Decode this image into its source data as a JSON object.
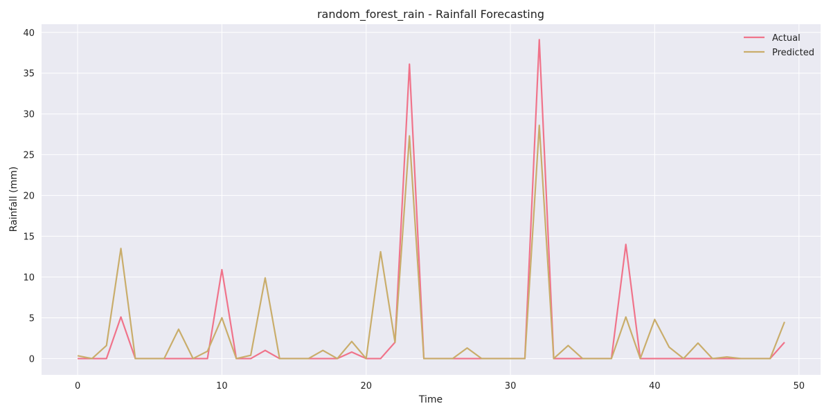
{
  "chart_data": {
    "type": "line",
    "title": "random_forest_rain - Rainfall Forecasting",
    "xlabel": "Time",
    "ylabel": "Rainfall (mm)",
    "xlim": [
      -2.5,
      51.5
    ],
    "ylim": [
      -2,
      41
    ],
    "xticks": [
      0,
      10,
      20,
      30,
      40,
      50
    ],
    "yticks": [
      0,
      5,
      10,
      15,
      20,
      25,
      30,
      35,
      40
    ],
    "grid": true,
    "legend_position": "top-right",
    "x": [
      0,
      1,
      2,
      3,
      4,
      5,
      6,
      7,
      8,
      9,
      10,
      11,
      12,
      13,
      14,
      15,
      16,
      17,
      18,
      19,
      20,
      21,
      22,
      23,
      24,
      25,
      26,
      27,
      28,
      29,
      30,
      31,
      32,
      33,
      34,
      35,
      36,
      37,
      38,
      39,
      40,
      41,
      42,
      43,
      44,
      45,
      46,
      47,
      48,
      49
    ],
    "series": [
      {
        "name": "Actual",
        "color": "#f0738a",
        "values": [
          0,
          0,
          0,
          5.1,
          0,
          0,
          0,
          0,
          0,
          0,
          10.9,
          0,
          0,
          1.0,
          0,
          0,
          0,
          0,
          0,
          0.8,
          0,
          0,
          2.0,
          36.1,
          0,
          0,
          0,
          0,
          0,
          0,
          0,
          0,
          39.1,
          0,
          0,
          0,
          0,
          0,
          14.0,
          0,
          0,
          0,
          0,
          0,
          0,
          0,
          0,
          0,
          0,
          2.0
        ]
      },
      {
        "name": "Predicted",
        "color": "#c9ad6b",
        "values": [
          0.35,
          0,
          1.6,
          13.5,
          0,
          0,
          0,
          3.6,
          0,
          0.9,
          5.0,
          0,
          0.4,
          9.9,
          0,
          0,
          0,
          1.0,
          0,
          2.1,
          0,
          13.1,
          2.0,
          27.3,
          0,
          0,
          0,
          1.3,
          0,
          0,
          0,
          0,
          28.6,
          0,
          1.6,
          0,
          0,
          0,
          5.1,
          0,
          4.8,
          1.4,
          0,
          1.9,
          0,
          0.2,
          0,
          0,
          0,
          4.5
        ]
      }
    ]
  }
}
